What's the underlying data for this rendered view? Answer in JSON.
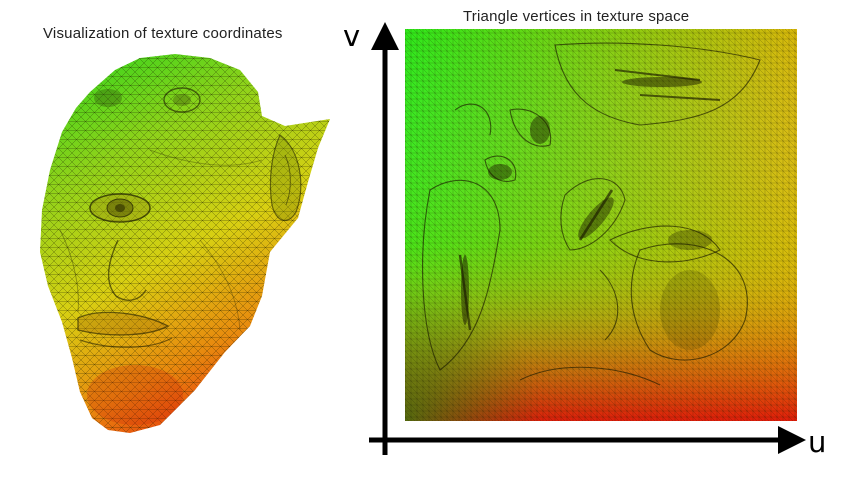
{
  "left_panel": {
    "title": "Visualization of texture coordinates"
  },
  "right_panel": {
    "title": "Triangle vertices in texture space",
    "axes": {
      "vertical_label": "v",
      "horizontal_label": "u"
    }
  },
  "colors": {
    "background": "#ffffff",
    "axis": "#000000",
    "gradient_top_left": "#2ee81a",
    "gradient_top_right": "#d6c20a",
    "gradient_bottom_left": "#9cc016",
    "gradient_bottom_right": "#e8220c",
    "mesh_lines": "#1a1a00"
  }
}
